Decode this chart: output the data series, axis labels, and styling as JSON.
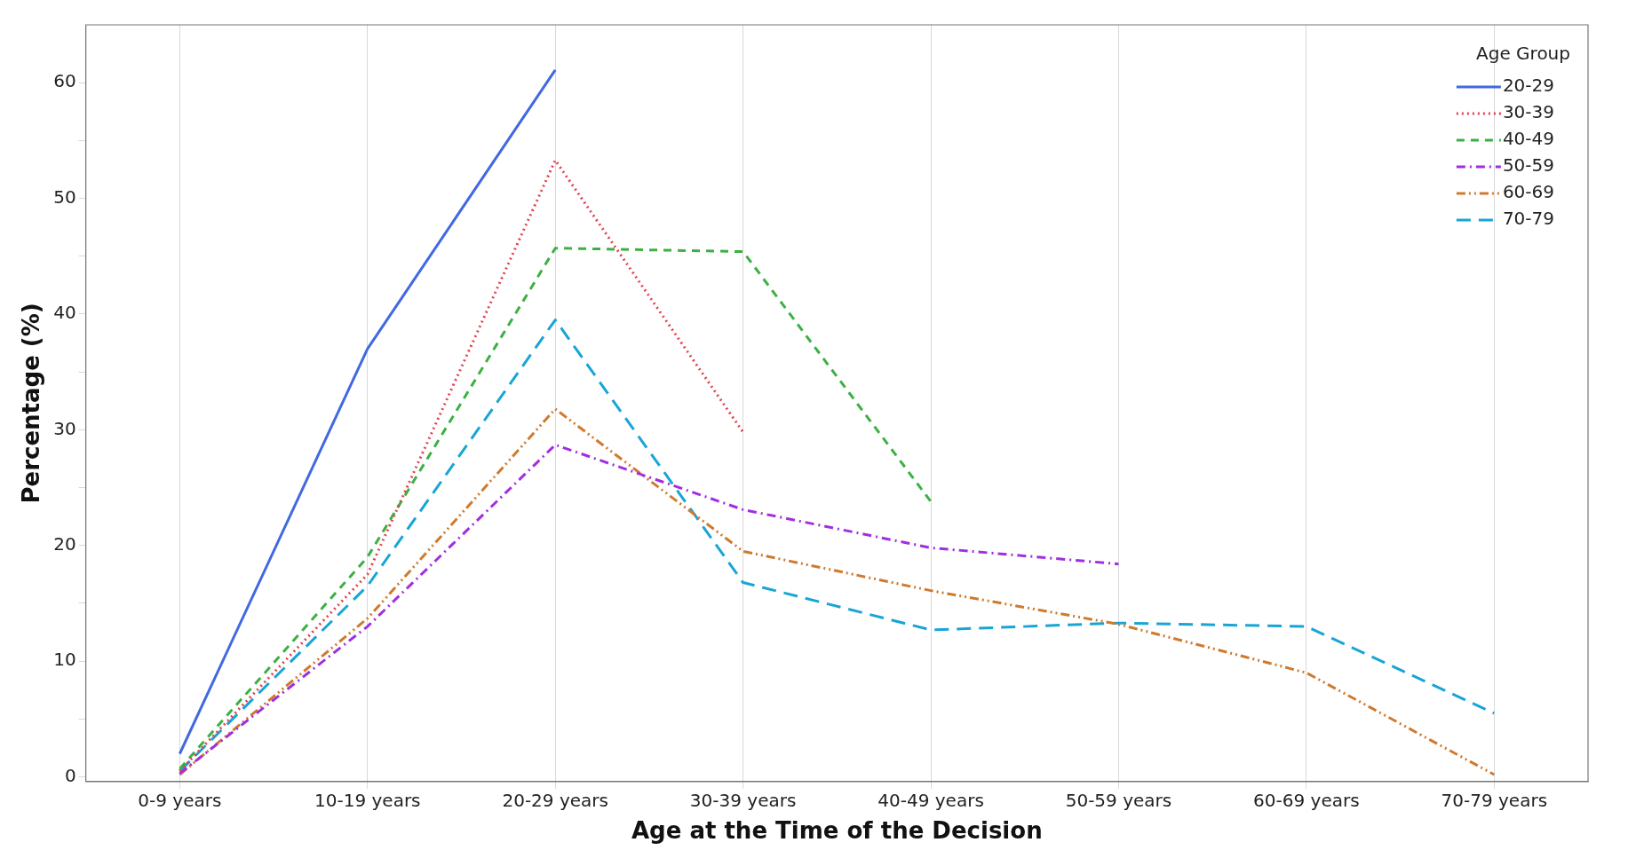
{
  "chart_data": {
    "type": "line",
    "xlabel": "Age at the Time of the Decision",
    "ylabel": "Percentage (%)",
    "legend_title": "Age Group",
    "legend": "top right",
    "grid": "x",
    "marker": "none",
    "categories": [
      "0-9 years",
      "10-19 years",
      "20-29 years",
      "30-39 years",
      "40-49 years",
      "50-59 years",
      "60-69 years",
      "70-79 years"
    ],
    "ylim": [
      -0.4,
      65
    ],
    "yticks": [
      0,
      {
        "value": 5,
        "label": null
      },
      10,
      {
        "value": 15,
        "label": null
      },
      20,
      {
        "value": 25,
        "label": null
      },
      30,
      {
        "value": 35,
        "label": null
      },
      40,
      {
        "value": 45,
        "label": null
      },
      50,
      {
        "value": 55,
        "label": null
      },
      60
    ],
    "series": [
      {
        "name": "20-29",
        "color": "#4169e1",
        "line_style": "solid",
        "values": [
          2.0,
          37.0,
          61.1,
          null,
          null,
          null,
          null,
          null
        ]
      },
      {
        "name": "30-39",
        "color": "#e0434f",
        "line_style": "dotted",
        "values": [
          0.5,
          17.5,
          53.3,
          29.8,
          null,
          null,
          null,
          null
        ]
      },
      {
        "name": "40-49",
        "color": "#3cb043",
        "line_style": "dashed",
        "values": [
          0.7,
          19.0,
          45.7,
          45.4,
          23.8,
          null,
          null,
          null
        ]
      },
      {
        "name": "50-59",
        "color": "#a12ee0",
        "line_style": "dashdot",
        "values": [
          0.3,
          13.0,
          28.7,
          23.1,
          19.8,
          18.4,
          null,
          null
        ]
      },
      {
        "name": "60-69",
        "color": "#cf7a2e",
        "line_style": "dashdotdot",
        "values": [
          0.2,
          13.7,
          31.8,
          19.5,
          16.1,
          13.2,
          9.0,
          0.2
        ]
      },
      {
        "name": "70-79",
        "color": "#18a5d6",
        "line_style": "longdash",
        "values": [
          0.5,
          16.5,
          39.5,
          16.8,
          12.7,
          13.3,
          13.0,
          5.5
        ]
      }
    ]
  }
}
